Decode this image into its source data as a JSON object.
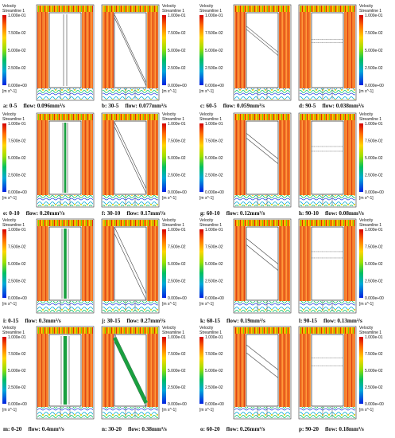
{
  "legend": {
    "title": "Velocity",
    "subtitle": "Streamline 1",
    "ticks": [
      "1.000e-01",
      "7.500e-02",
      "5.000e-02",
      "2.500e-02",
      "0.000e+00"
    ],
    "unit": "[m s^-1]",
    "colors": [
      "#d40000",
      "#ff6a00",
      "#ffd400",
      "#9be000",
      "#00c060",
      "#00a8d8",
      "#0020e0"
    ]
  },
  "panels": [
    {
      "label": "a: 0-5",
      "flow": "flow: 0.096mm³/s",
      "angle": 0
    },
    {
      "label": "b: 30-5",
      "flow": "flow: 0.077mm³/s",
      "angle": 30
    },
    {
      "label": "c: 60-5",
      "flow": "flow: 0.059mm³/s",
      "angle": 60
    },
    {
      "label": "d: 90-5",
      "flow": "flow: 0.038mm³/s",
      "angle": 90
    },
    {
      "label": "e: 0-10",
      "flow": "flow: 0.20mm³/s",
      "angle": 0
    },
    {
      "label": "f: 30-10",
      "flow": "flow: 0.17mm³/s",
      "angle": 30
    },
    {
      "label": "g: 60-10",
      "flow": "flow: 0.12mm³/s",
      "angle": 60
    },
    {
      "label": "h: 90-10",
      "flow": "flow: 0.08mm³/s",
      "angle": 90
    },
    {
      "label": "i: 0-15",
      "flow": "flow: 0.3mm³/s",
      "angle": 0
    },
    {
      "label": "j: 30-15",
      "flow": "flow: 0.27mm³/s",
      "angle": 30
    },
    {
      "label": "k: 60-15",
      "flow": "flow: 0.19mm³/s",
      "angle": 60
    },
    {
      "label": "l: 90-15",
      "flow": "flow: 0.13mm³/s",
      "angle": 90
    },
    {
      "label": "m: 0-20",
      "flow": "flow: 0.4mm³/s",
      "angle": 0
    },
    {
      "label": "n: 30-20",
      "flow": "flow: 0.38mm³/s",
      "angle": 30
    },
    {
      "label": "o: 60-20",
      "flow": "flow: 0.26mm³/s",
      "angle": 60
    },
    {
      "label": "p: 90-20",
      "flow": "flow: 0.18mm³/s",
      "angle": 90
    }
  ]
}
